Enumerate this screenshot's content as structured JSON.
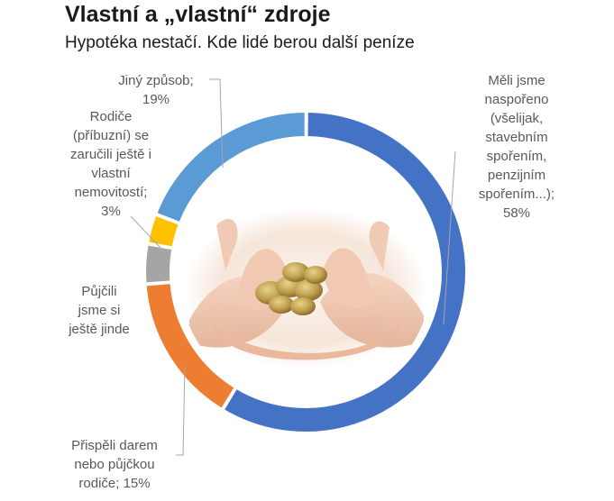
{
  "title": "Vlastní a „vlastní“ zdroje",
  "subtitle": "Hypotéka nestačí. Kde lidé berou další peníze",
  "chart_data": {
    "type": "pie",
    "style": "donut",
    "title": "Vlastní a „vlastní“ zdroje",
    "subtitle": "Hypotéka nestačí. Kde lidé berou další peníze",
    "slices": [
      {
        "label_lines": [
          "Měli jsme",
          "naspořeno",
          "(všelijak,",
          "stavebním",
          "spořením,",
          "penzijním",
          "spořením...);",
          "58%"
        ],
        "value": 58,
        "color": "#4472c4"
      },
      {
        "label_lines": [
          "Přispěli darem",
          "nebo půjčkou",
          "rodiče; 15%"
        ],
        "value": 15,
        "color": "#ed7d31"
      },
      {
        "label_lines": [
          "Půjčili",
          "jsme si",
          "ještě jinde"
        ],
        "value": 4,
        "color": "#a5a5a5"
      },
      {
        "label_lines": [
          "Rodiče",
          "(příbuzní) se",
          "zaručili ještě i",
          "vlastní",
          "nemovitostí;",
          "3%"
        ],
        "value": 3,
        "color": "#ffc000"
      },
      {
        "label_lines": [
          "Jiný způsob;",
          "19%"
        ],
        "value": 19,
        "color": "#5b9bd5"
      }
    ],
    "legend": "none",
    "center_image": "hands-with-coins"
  }
}
